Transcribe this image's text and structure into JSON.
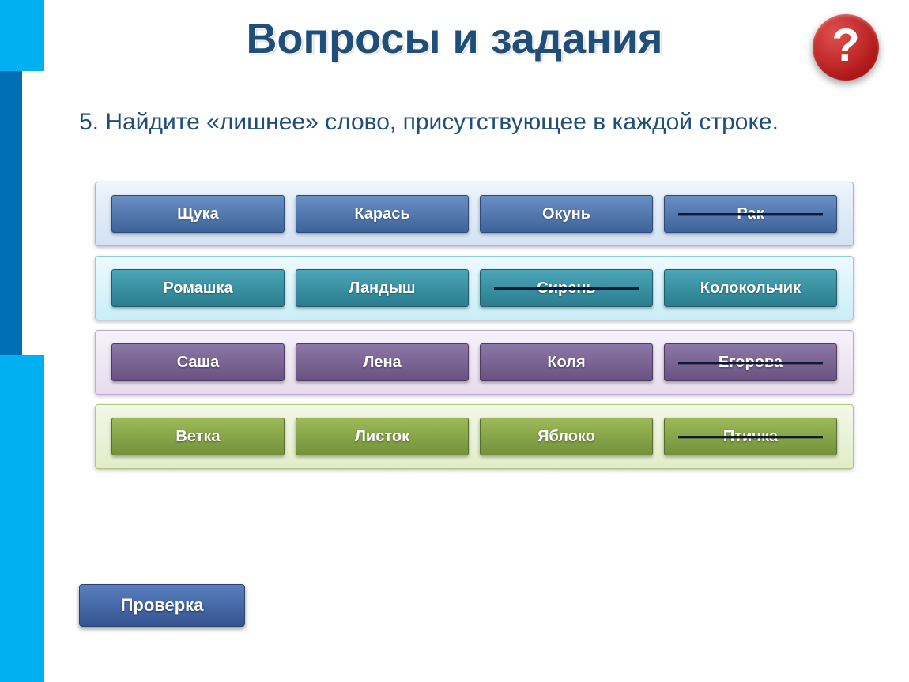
{
  "title": "Вопросы и задания",
  "help_icon": "?",
  "prompt": "5. Найдите «лишнее» слово, присутствующее в каждой строке.",
  "check_label": "Проверка",
  "colors": {
    "title_color": "#1f4e79",
    "help_bg": "#c22020",
    "sidebar_main": "#00b0f0",
    "sidebar_accent": "#006eb4"
  },
  "rows": [
    {
      "panel_bg": "linear-gradient(#eef4fb, #d3e2f3)",
      "panel_border": "#9fb9dd",
      "item_bg": "linear-gradient(#6a8fc3, #3d639b)",
      "item_border": "#2d4a78",
      "items": [
        {
          "label": "Щука",
          "strike": false
        },
        {
          "label": "Карась",
          "strike": false
        },
        {
          "label": "Окунь",
          "strike": false
        },
        {
          "label": "Рак",
          "strike": true
        }
      ]
    },
    {
      "panel_bg": "linear-gradient(#eefaff, #c9eef8)",
      "panel_border": "#8dcde0",
      "item_bg": "linear-gradient(#4aa5b6, #2a7d8e)",
      "item_border": "#1e5e6c",
      "items": [
        {
          "label": "Ромашка",
          "strike": false
        },
        {
          "label": "Ландыш",
          "strike": false
        },
        {
          "label": "Сирень",
          "strike": true
        },
        {
          "label": "Колокольчик",
          "strike": false
        }
      ]
    },
    {
      "panel_bg": "linear-gradient(#f6f2fa, #e6dced)",
      "panel_border": "#bfa9d2",
      "item_bg": "linear-gradient(#8d77a8, #67527f)",
      "item_border": "#4d3c60",
      "items": [
        {
          "label": "Саша",
          "strike": false
        },
        {
          "label": "Лена",
          "strike": false
        },
        {
          "label": "Коля",
          "strike": false
        },
        {
          "label": "Егорова",
          "strike": true
        }
      ]
    },
    {
      "panel_bg": "linear-gradient(#f3f8e8, #e1edc7)",
      "panel_border": "#aec77a",
      "item_bg": "linear-gradient(#9db95a, #72913a)",
      "item_border": "#55702a",
      "items": [
        {
          "label": "Ветка",
          "strike": false
        },
        {
          "label": "Листок",
          "strike": false
        },
        {
          "label": "Яблоко",
          "strike": false
        },
        {
          "label": "Птичка",
          "strike": true
        }
      ]
    }
  ]
}
